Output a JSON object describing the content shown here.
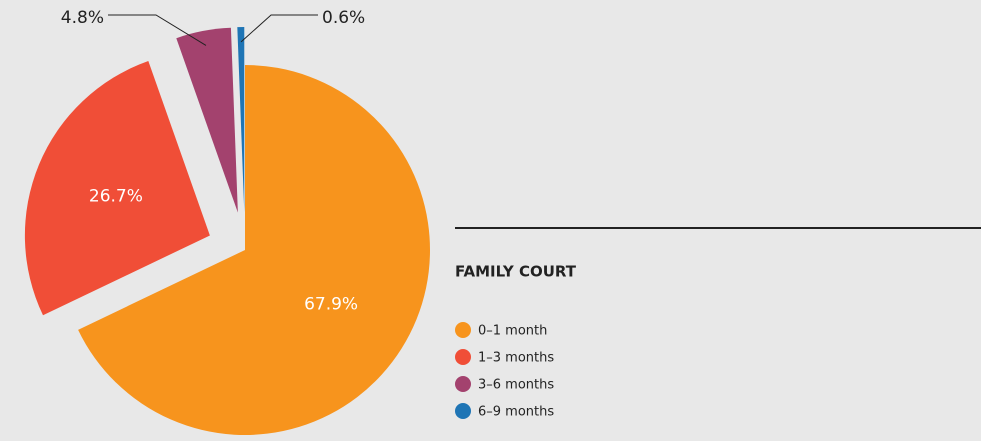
{
  "chart_data": {
    "type": "pie",
    "title": "FAMILY COURT",
    "categories": [
      "0–1 month",
      "1–3 months",
      "3–6 months",
      "6–9 months"
    ],
    "values": [
      67.9,
      26.7,
      4.8,
      0.6
    ],
    "value_labels": [
      "67.9%",
      "26.7%",
      "4.8%",
      "0.6%"
    ],
    "colors": [
      "#f7941d",
      "#f04e37",
      "#a3426e",
      "#1f75b5"
    ]
  }
}
